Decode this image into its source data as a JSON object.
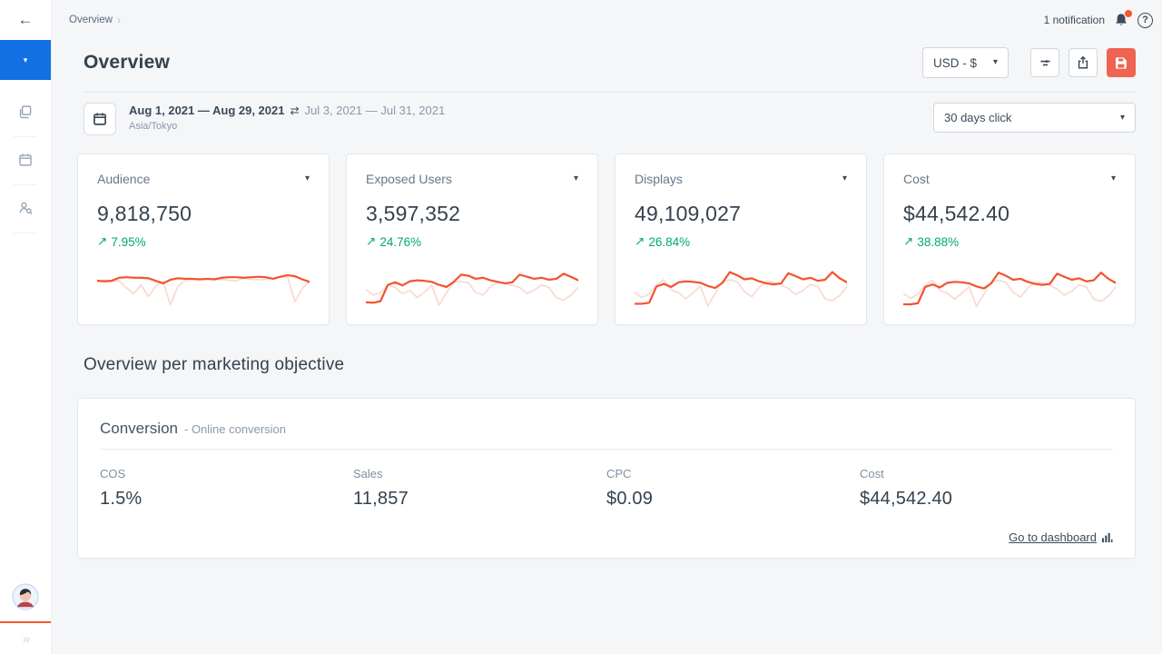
{
  "icons": {
    "back_arrow": "←",
    "caret_down": "▾",
    "breadcrumb_chevron": "›",
    "question_mark": "?",
    "compare_arrows": "⇄",
    "trend_up": "↗",
    "double_chevron": "»"
  },
  "topbar": {
    "breadcrumb": "Overview",
    "notification": "1 notification"
  },
  "header": {
    "title": "Overview",
    "currency": "USD - $"
  },
  "filterbar": {
    "date_current": "Aug 1, 2021 — Aug 29, 2021",
    "date_compare": "Jul 3, 2021 — Jul 31, 2021",
    "timezone": "Asia/Tokyo",
    "attribution": "30 days click"
  },
  "cards": [
    {
      "label": "Audience",
      "value": "9,818,750",
      "delta": "7.95%",
      "sparkline": {
        "current": [
          55,
          54,
          55,
          61,
          62,
          61,
          61,
          60,
          55,
          50,
          57,
          60,
          59,
          59,
          58,
          59,
          58,
          61,
          62,
          62,
          61,
          62,
          63,
          62,
          59,
          63,
          66,
          64,
          58,
          53
        ],
        "previous": [
          55,
          56,
          54,
          55,
          41,
          30,
          47,
          24,
          45,
          54,
          8,
          44,
          55,
          57,
          57,
          58,
          57,
          58,
          56,
          55,
          60,
          58,
          57,
          58,
          60,
          62,
          63,
          14,
          40,
          54
        ]
      }
    },
    {
      "label": "Exposed Users",
      "value": "3,597,352",
      "delta": "24.76%",
      "sparkline": {
        "current": [
          13,
          12,
          15,
          47,
          52,
          46,
          54,
          56,
          55,
          53,
          47,
          43,
          53,
          67,
          65,
          59,
          61,
          56,
          53,
          50,
          52,
          67,
          63,
          59,
          61,
          57,
          59,
          69,
          63,
          56
        ],
        "previous": [
          38,
          27,
          32,
          46,
          42,
          30,
          36,
          22,
          33,
          46,
          7,
          32,
          52,
          54,
          51,
          32,
          27,
          44,
          52,
          50,
          46,
          42,
          30,
          37,
          47,
          42,
          22,
          17,
          27,
          42
        ]
      }
    },
    {
      "label": "Displays",
      "value": "49,109,027",
      "delta": "26.84%",
      "sparkline": {
        "current": [
          10,
          10,
          12,
          44,
          49,
          43,
          52,
          54,
          53,
          51,
          45,
          41,
          51,
          72,
          66,
          58,
          60,
          54,
          50,
          48,
          50,
          70,
          64,
          58,
          61,
          55,
          57,
          72,
          60,
          52
        ],
        "previous": [
          32,
          22,
          30,
          47,
          57,
          37,
          32,
          20,
          32,
          44,
          6,
          30,
          54,
          57,
          53,
          34,
          24,
          42,
          54,
          52,
          47,
          40,
          28,
          36,
          48,
          44,
          20,
          16,
          26,
          44
        ]
      }
    },
    {
      "label": "Cost",
      "value": "$44,542.40",
      "delta": "38.88%",
      "sparkline": {
        "current": [
          9,
          9,
          11,
          43,
          48,
          42,
          51,
          53,
          52,
          50,
          44,
          40,
          50,
          71,
          65,
          57,
          59,
          53,
          49,
          47,
          49,
          69,
          63,
          57,
          60,
          54,
          56,
          71,
          59,
          51
        ],
        "previous": [
          30,
          21,
          29,
          46,
          56,
          36,
          31,
          19,
          31,
          43,
          5,
          29,
          53,
          56,
          52,
          33,
          23,
          41,
          53,
          51,
          46,
          39,
          27,
          35,
          47,
          43,
          19,
          15,
          25,
          43
        ]
      }
    }
  ],
  "objective": {
    "section_title": "Overview per marketing objective",
    "card": {
      "title": "Conversion",
      "subtitle": "- Online conversion",
      "metrics": [
        {
          "label": "COS",
          "value": "1.5%"
        },
        {
          "label": "Sales",
          "value": "11,857"
        },
        {
          "label": "CPC",
          "value": "$0.09"
        },
        {
          "label": "Cost",
          "value": "$44,542.40"
        }
      ],
      "link": "Go to dashboard"
    }
  },
  "colors": {
    "accent_line": "#f4532f",
    "accent_line_previous": "#f9dbd3",
    "accent_button": "#ee6352",
    "active_blue": "#1170e4",
    "positive_green": "#00a87b",
    "notification_dot": "#f4572e"
  }
}
